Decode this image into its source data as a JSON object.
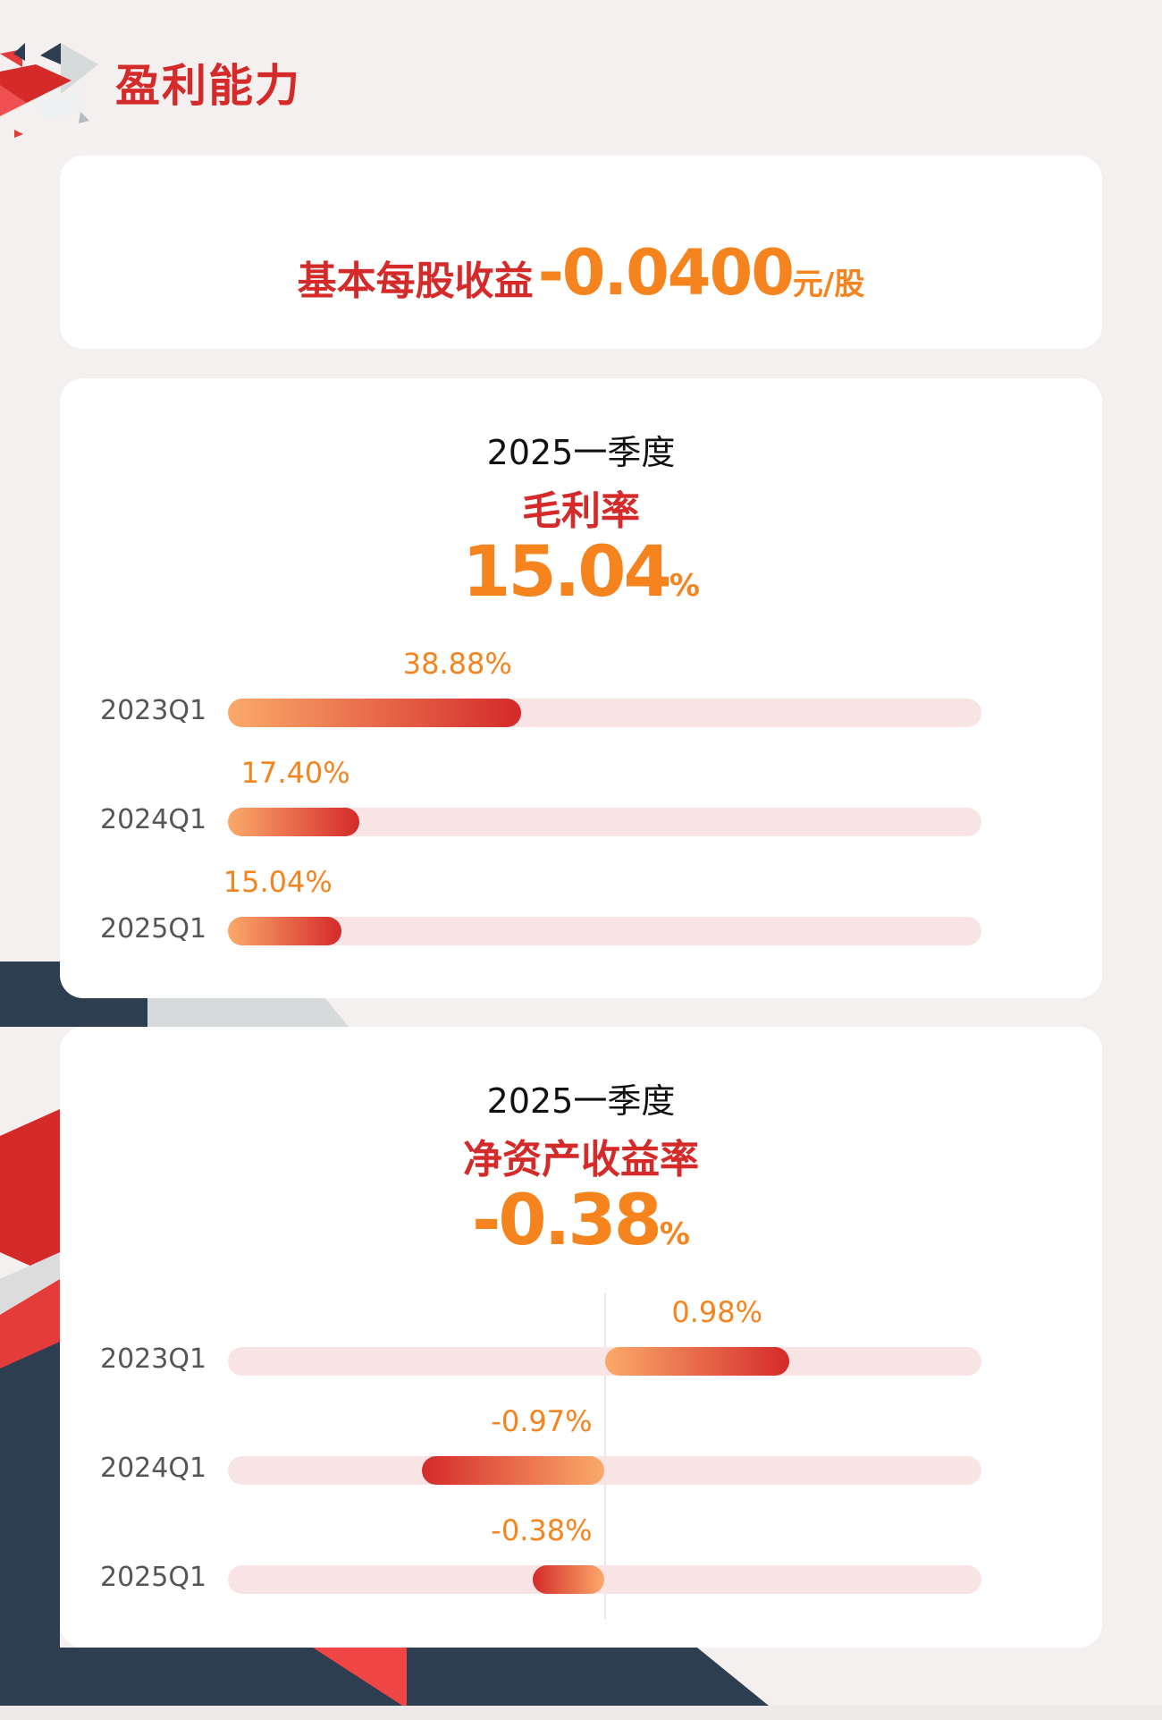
{
  "header": {
    "title": "盈利能力"
  },
  "eps": {
    "label": "基本每股收益",
    "value": "-0.0400",
    "unit": "元/股"
  },
  "colors": {
    "accent_red": "#d42a2a",
    "accent_orange": "#f5841f",
    "track": "#f8e4e5",
    "navy": "#2d3e50"
  },
  "cards": [
    {
      "period": "2025一季度",
      "metric": "毛利率",
      "value": "15.04",
      "unit": "%",
      "chart_data": {
        "type": "bar",
        "orientation": "horizontal",
        "xlim": [
          0,
          100
        ],
        "categories": [
          "2023Q1",
          "2024Q1",
          "2025Q1"
        ],
        "values": [
          38.88,
          17.4,
          15.04
        ],
        "labels": [
          "38.88%",
          "17.40%",
          "15.04%"
        ]
      }
    },
    {
      "period": "2025一季度",
      "metric": "净资产收益率",
      "value": "-0.38",
      "unit": "%",
      "chart_data": {
        "type": "bar",
        "orientation": "horizontal",
        "xlim": [
          -2,
          2
        ],
        "categories": [
          "2023Q1",
          "2024Q1",
          "2025Q1"
        ],
        "values": [
          0.98,
          -0.97,
          -0.38
        ],
        "labels": [
          "0.98%",
          "-0.97%",
          "-0.38%"
        ]
      }
    }
  ]
}
